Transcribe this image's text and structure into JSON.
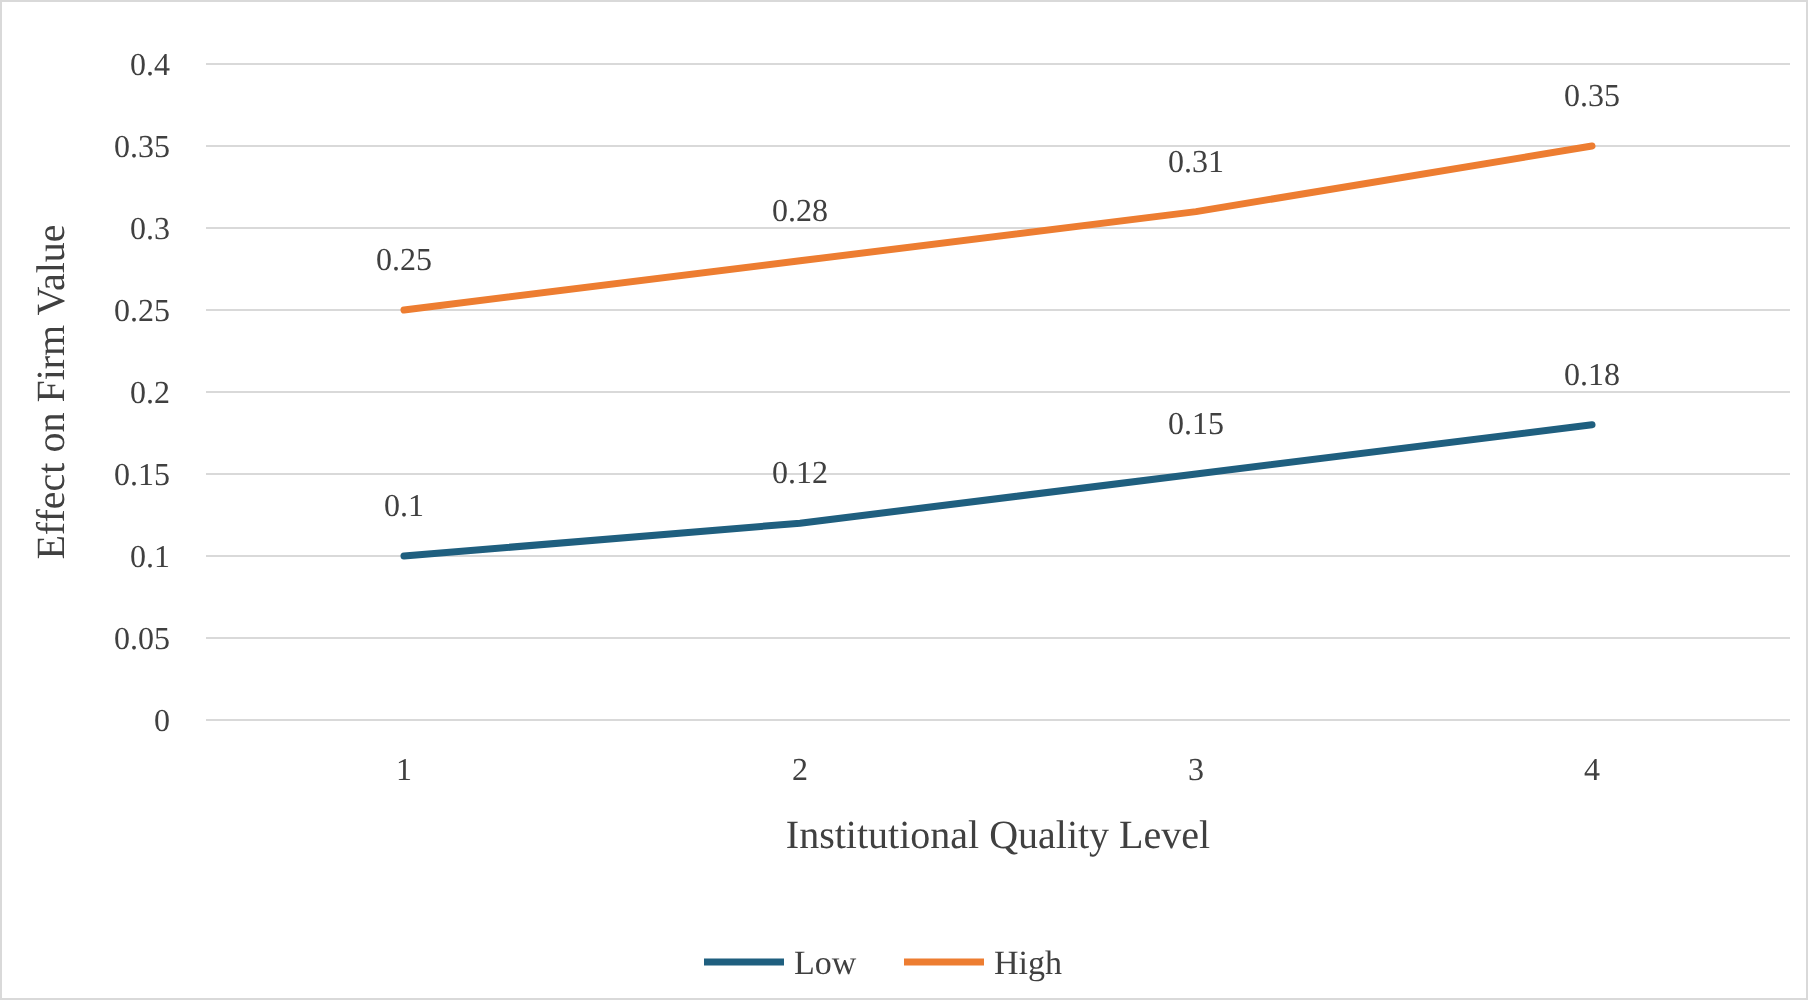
{
  "chart_data": {
    "type": "line",
    "xlabel": "Institutional Quality Level",
    "ylabel": "Effect on Firm Value",
    "categories": [
      "1",
      "2",
      "3",
      "4"
    ],
    "series": [
      {
        "name": "Low",
        "color": "#1f5f7f",
        "values": [
          0.1,
          0.12,
          0.15,
          0.18
        ]
      },
      {
        "name": "High",
        "color": "#ed7d31",
        "values": [
          0.25,
          0.28,
          0.31,
          0.35
        ]
      }
    ],
    "ylim": [
      0,
      0.4
    ],
    "yticks": [
      0,
      0.05,
      0.1,
      0.15,
      0.2,
      0.25,
      0.3,
      0.35,
      0.4
    ],
    "grid": "y",
    "legend": "bottom",
    "data_labels": true,
    "marker": "none",
    "line_style": "solid"
  }
}
